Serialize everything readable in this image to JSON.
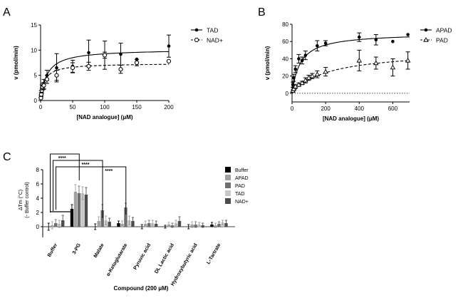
{
  "figure": {
    "panel_labels": [
      "A",
      "B",
      "C"
    ]
  },
  "chart_data": [
    {
      "type": "scatter",
      "panel": "A",
      "xlabel": "[NAD analogue] (μM)",
      "ylabel": "v (pmol/min)",
      "xlim": [
        0,
        200
      ],
      "ylim": [
        0,
        15
      ],
      "xticks": [
        0,
        50,
        100,
        150,
        200
      ],
      "yticks": [
        0,
        5,
        10,
        15
      ],
      "xtick_labels": [
        "0",
        "50",
        "100",
        "150",
        "200"
      ],
      "ytick_labels": [
        "0",
        "5",
        "10",
        "15"
      ],
      "legend": [
        "TAD",
        "NAD+"
      ],
      "series": [
        {
          "name": "TAD",
          "marker": "filled-circle",
          "line": "solid",
          "x": [
            0.5,
            1,
            2,
            3,
            5,
            10,
            25,
            50,
            75,
            100,
            125,
            150,
            200
          ],
          "y": [
            0.8,
            1.5,
            2.5,
            2.8,
            3.2,
            5.0,
            6.5,
            6.8,
            9.5,
            9.0,
            9.2,
            8.2,
            10.8
          ],
          "err": [
            0.3,
            0.5,
            0.6,
            0.6,
            1.0,
            1.0,
            2.8,
            1.2,
            2.5,
            2.8,
            2.2,
            0.0,
            2.2
          ],
          "fit": {
            "model": "Michaelis-Menten",
            "vmax": 10.2,
            "km": 10
          }
        },
        {
          "name": "NAD+",
          "marker": "open-circle",
          "line": "dashed",
          "x": [
            0.5,
            1,
            2,
            3,
            5,
            10,
            25,
            50,
            75,
            100,
            125,
            150,
            200
          ],
          "y": [
            0.5,
            1.2,
            2.0,
            2.6,
            3.0,
            4.2,
            5.0,
            6.5,
            6.8,
            9.0,
            6.2,
            7.5,
            7.8
          ],
          "err": [
            0.2,
            0.4,
            0.5,
            0.5,
            0.6,
            0.8,
            1.0,
            1.0,
            0.8,
            0.6,
            0.8,
            0.6,
            0.0
          ],
          "fit": {
            "model": "Michaelis-Menten",
            "vmax": 7.4,
            "km": 6
          }
        }
      ]
    },
    {
      "type": "scatter",
      "panel": "B",
      "xlabel": "[NAD analogue] (μM)",
      "ylabel": "v (pmol/min)",
      "xlim": [
        0,
        700
      ],
      "ylim": [
        -10,
        80
      ],
      "xticks": [
        0,
        200,
        400,
        600
      ],
      "yticks": [
        0,
        20,
        40,
        60,
        80
      ],
      "xtick_labels": [
        "0",
        "200",
        "400",
        "600"
      ],
      "ytick_labels": [
        "0",
        "20",
        "40",
        "60",
        "80"
      ],
      "legend": [
        "APAD",
        "PAD"
      ],
      "series": [
        {
          "name": "APAD",
          "marker": "filled-circle",
          "line": "solid",
          "x": [
            5,
            10,
            20,
            40,
            60,
            80,
            150,
            200,
            400,
            500,
            600,
            690
          ],
          "y": [
            10,
            18,
            28,
            40,
            38,
            44,
            55,
            58,
            65,
            62,
            60,
            68
          ],
          "err": [
            3,
            4,
            4,
            5,
            4,
            5,
            6,
            3,
            5,
            6,
            0,
            0
          ],
          "fit": {
            "model": "Michaelis-Menten",
            "vmax": 70,
            "km": 50
          }
        },
        {
          "name": "PAD",
          "marker": "open-triangle",
          "line": "dashed",
          "x": [
            5,
            10,
            20,
            40,
            60,
            80,
            100,
            120,
            150,
            200,
            400,
            500,
            600,
            690
          ],
          "y": [
            3,
            5,
            8,
            10,
            12,
            15,
            18,
            20,
            22,
            25,
            38,
            35,
            30,
            38
          ],
          "err": [
            1,
            2,
            2,
            2,
            2,
            3,
            3,
            3,
            4,
            5,
            12,
            7,
            10,
            10
          ],
          "fit": {
            "model": "Michaelis-Menten",
            "vmax": 50,
            "km": 220
          }
        }
      ],
      "reference_line": {
        "y": 0,
        "style": "dotted"
      }
    },
    {
      "type": "bar",
      "panel": "C",
      "xlabel": "Compound (200 μM)",
      "ylabel": "ΔTm (°C)",
      "ylabel_sub": "(- Buffer control)",
      "ylim": [
        -1.5,
        8
      ],
      "yticks": [
        0,
        2,
        4,
        6,
        8
      ],
      "ytick_labels": [
        "0",
        "2",
        "4",
        "6",
        "8"
      ],
      "categories": [
        "Buffer",
        "3-PG",
        "Malate",
        "α-Ketoglutarate",
        "Pyruvic acid",
        "DL Lactic acid",
        "Hydroxybutyric acid",
        "L-Tartrate"
      ],
      "series": [
        {
          "name": "Buffer",
          "color": "#000000",
          "values": [
            0.0,
            2.5,
            0.0,
            0.5,
            0.0,
            0.0,
            0.0,
            0.3
          ],
          "err": [
            0.5,
            0.6,
            0.4,
            0.3,
            0.3,
            0.2,
            0.3,
            0.3
          ]
        },
        {
          "name": "APAD",
          "color": "#a0a0a0",
          "values": [
            0.2,
            4.9,
            0.8,
            0.4,
            0.4,
            0.3,
            0.3,
            0.2
          ],
          "err": [
            0.5,
            1.0,
            0.6,
            0.4,
            0.4,
            0.3,
            0.4,
            0.3
          ]
        },
        {
          "name": "PAD",
          "color": "#6e6e6e",
          "values": [
            0.5,
            4.7,
            2.3,
            2.7,
            0.5,
            0.2,
            0.3,
            0.4
          ],
          "err": [
            0.5,
            1.0,
            0.8,
            0.6,
            0.4,
            0.3,
            0.4,
            0.3
          ]
        },
        {
          "name": "TAD",
          "color": "#c8c8c8",
          "values": [
            0.4,
            4.7,
            0.9,
            0.9,
            0.5,
            0.5,
            0.3,
            0.6
          ],
          "err": [
            0.5,
            0.9,
            0.6,
            0.6,
            0.4,
            0.4,
            0.3,
            0.3
          ]
        },
        {
          "name": "NAD+",
          "color": "#4d4d4d",
          "values": [
            0.9,
            4.5,
            0.7,
            0.8,
            0.4,
            0.8,
            0.2,
            0.5
          ],
          "err": [
            0.7,
            1.0,
            0.5,
            0.5,
            0.4,
            0.6,
            0.3,
            0.4
          ]
        }
      ],
      "significance": [
        {
          "from": "Buffer",
          "to": "3-PG",
          "label": "****"
        },
        {
          "from": "Buffer",
          "to": "Malate",
          "label": "****"
        },
        {
          "from": "Buffer",
          "to": "α-Ketoglutarate",
          "label": "****"
        }
      ]
    }
  ]
}
